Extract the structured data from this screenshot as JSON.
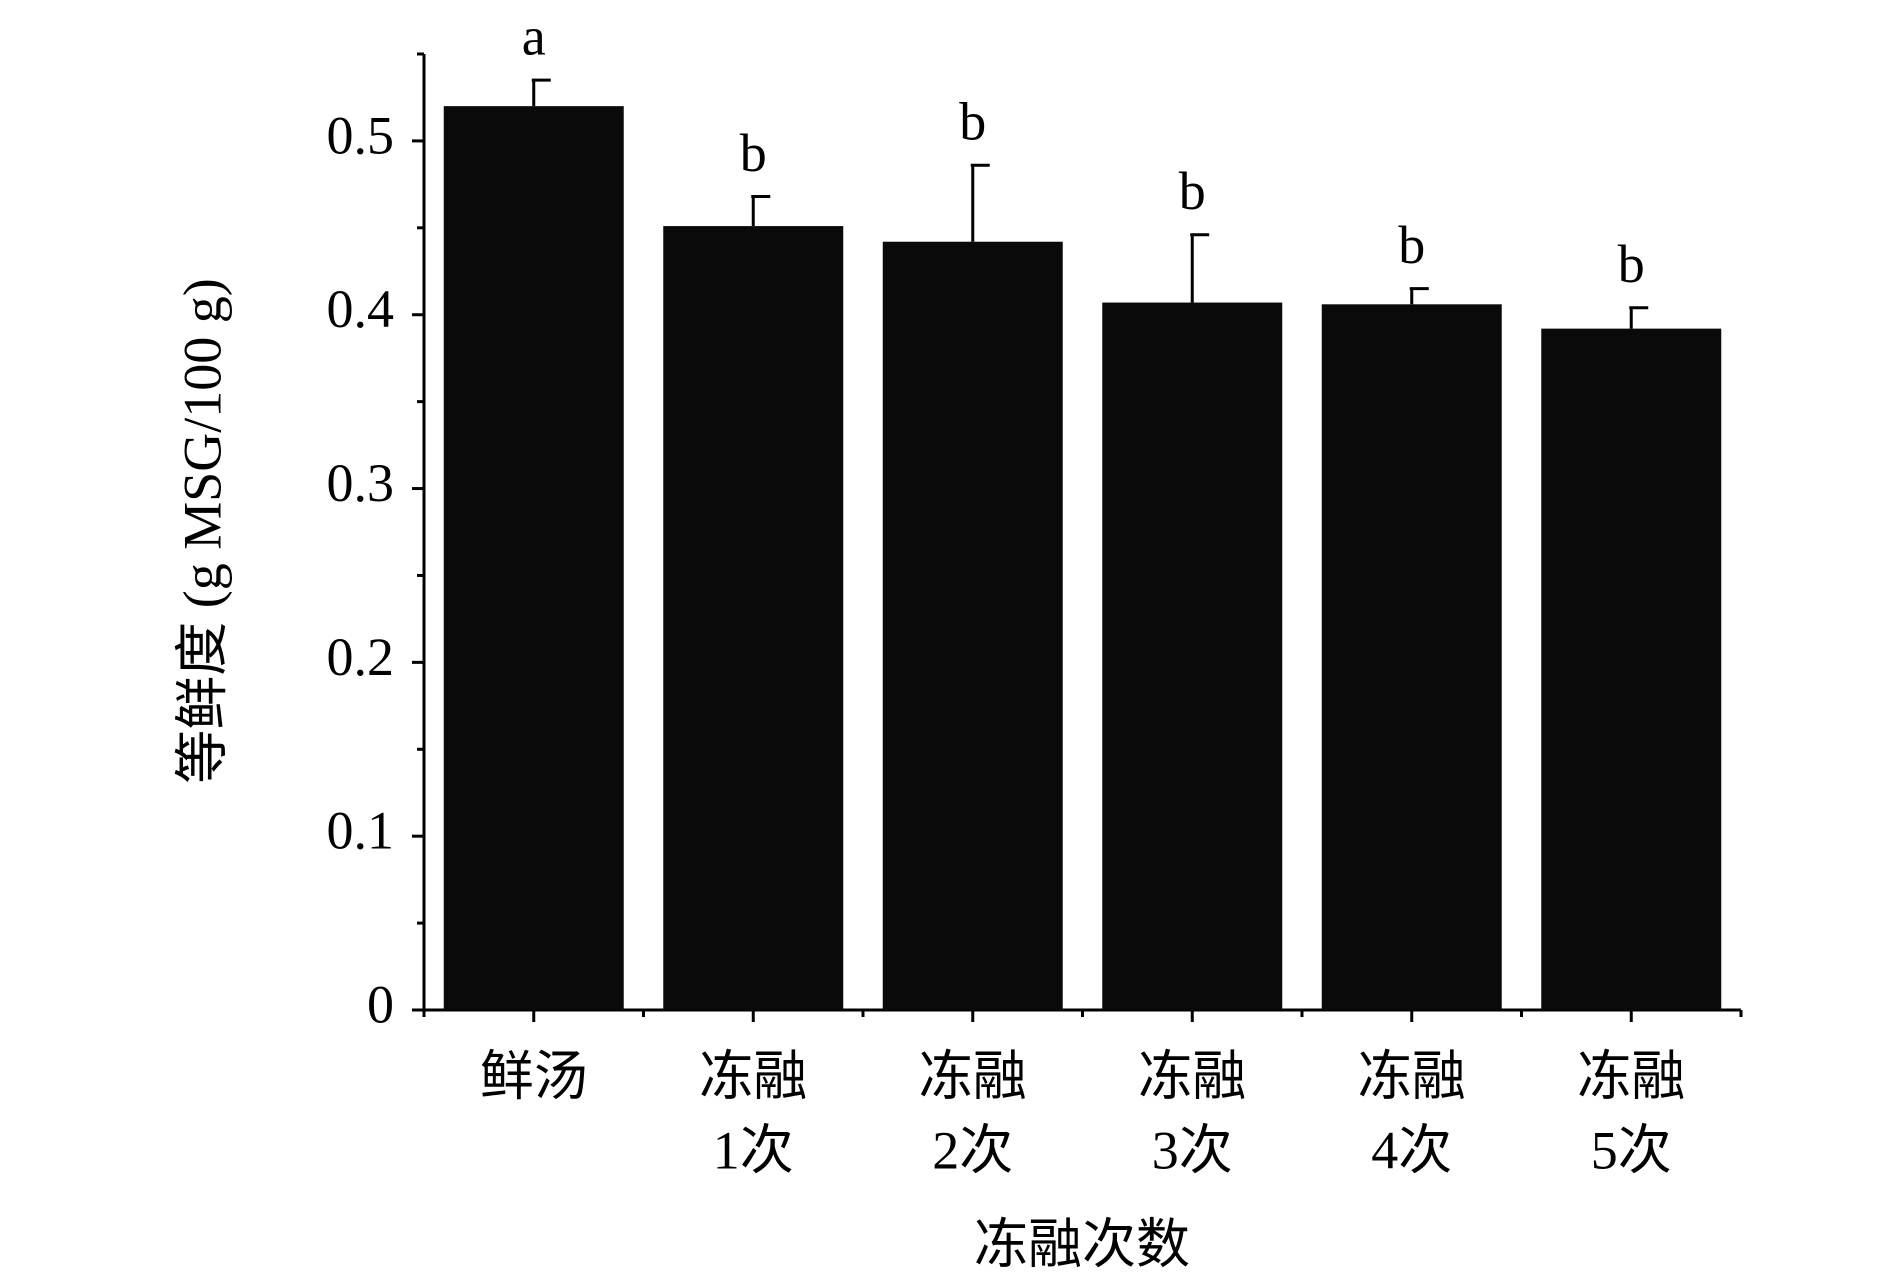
{
  "chart_data": {
    "type": "bar",
    "x_label": "冻融次数",
    "y_label": "等鲜度 (g MSG/100 g)",
    "categories": [
      [
        "鲜汤"
      ],
      [
        "冻融",
        "1次"
      ],
      [
        "冻融",
        "2次"
      ],
      [
        "冻融",
        "3次"
      ],
      [
        "冻融",
        "4次"
      ],
      [
        "冻融",
        "5次"
      ]
    ],
    "values": [
      0.52,
      0.451,
      0.442,
      0.407,
      0.406,
      0.392
    ],
    "errors": [
      0.015,
      0.017,
      0.044,
      0.039,
      0.009,
      0.012
    ],
    "significance_labels": [
      "a",
      "b",
      "b",
      "b",
      "b",
      "b"
    ],
    "color": "#0a0a0a",
    "ylim": [
      0,
      0.55
    ],
    "yticks": [
      0,
      0.1,
      0.2,
      0.3,
      0.4,
      0.5
    ],
    "grid": false
  }
}
